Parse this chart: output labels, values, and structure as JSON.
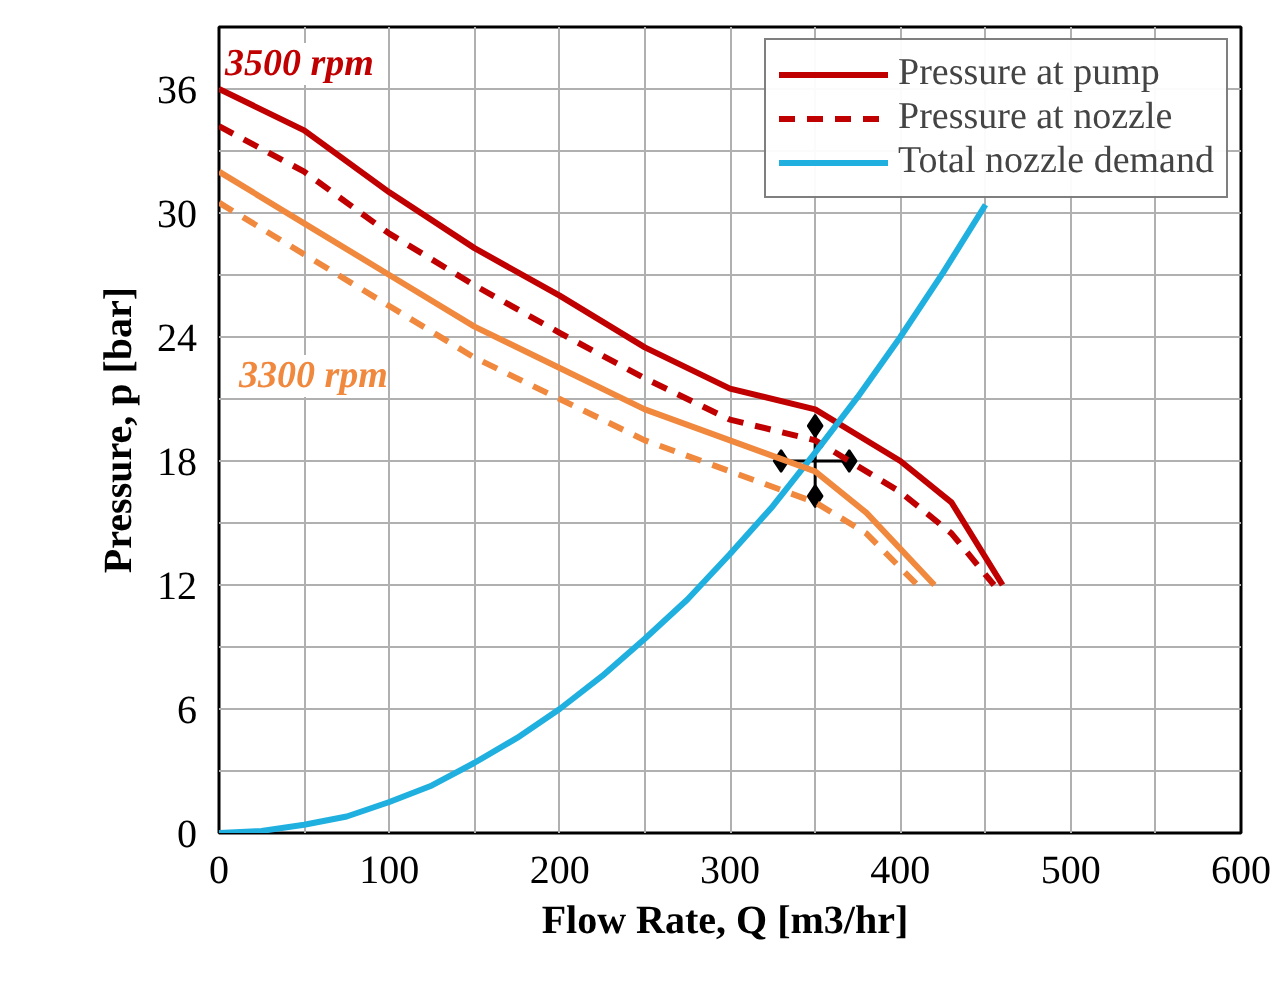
{
  "chart_data": {
    "type": "line",
    "xlabel": "Flow Rate, Q  [m3/hr]",
    "ylabel": "Pressure, p [bar]",
    "xlim": [
      0,
      600
    ],
    "ylim": [
      0,
      39
    ],
    "xticks": [
      0,
      {
        "value": 50,
        "label": null
      },
      100,
      {
        "value": 150,
        "label": null
      },
      200,
      {
        "value": 250,
        "label": null
      },
      300,
      {
        "value": 350,
        "label": null
      },
      400,
      {
        "value": 450,
        "label": null
      },
      500,
      {
        "value": 550,
        "label": null
      },
      600
    ],
    "yticks": [
      0,
      {
        "value": 3,
        "label": null
      },
      6,
      {
        "value": 9,
        "label": null
      },
      12,
      {
        "value": 15,
        "label": null
      },
      18,
      {
        "value": 21,
        "label": null
      },
      24,
      {
        "value": 27,
        "label": null
      },
      30,
      {
        "value": 33,
        "label": null
      },
      36,
      {
        "value": 39,
        "label": null
      }
    ],
    "grid": true,
    "legend": "top right",
    "marker": "none",
    "series": [
      {
        "color": "#000000",
        "line_style": "solid",
        "marker": "diamond",
        "x": [
          330,
          370
        ],
        "values": [
          18,
          18
        ]
      },
      {
        "color": "#000000",
        "line_style": "solid",
        "marker": "diamond",
        "x": [
          350,
          350
        ],
        "values": [
          16.3,
          19.7
        ]
      },
      {
        "name": "Pressure at pump",
        "color": "#c00000",
        "line_style": "solid",
        "x": [
          0,
          50,
          100,
          150,
          200,
          250,
          300,
          350,
          370,
          400,
          430,
          460
        ],
        "values": [
          36,
          34,
          31,
          28.3,
          26,
          23.5,
          21.5,
          20.5,
          19.5,
          18,
          16,
          12
        ]
      },
      {
        "name": "Pressure at nozzle",
        "color": "#c00000",
        "line_style": "dashed",
        "x": [
          0,
          50,
          100,
          150,
          200,
          250,
          300,
          350,
          400,
          430,
          455
        ],
        "values": [
          34.2,
          32,
          29,
          26.5,
          24.2,
          22,
          20,
          19,
          16.5,
          14.5,
          12
        ]
      },
      {
        "name": "Total nozzle demand",
        "color": "#1fb0e0",
        "line_style": "solid",
        "x": [
          0,
          25,
          50,
          75,
          100,
          125,
          150,
          175,
          200,
          225,
          250,
          275,
          300,
          325,
          350,
          375,
          400,
          425,
          450
        ],
        "values": [
          0,
          0.1,
          0.4,
          0.8,
          1.5,
          2.3,
          3.4,
          4.6,
          6,
          7.6,
          9.4,
          11.3,
          13.5,
          15.8,
          18.4,
          21.1,
          24,
          27.1,
          30.4
        ]
      },
      {
        "color": "#f0883e",
        "line_style": "solid",
        "x": [
          0,
          50,
          100,
          150,
          200,
          250,
          300,
          350,
          380,
          420
        ],
        "values": [
          32,
          29.5,
          27,
          24.5,
          22.5,
          20.5,
          19,
          17.5,
          15.5,
          12
        ]
      },
      {
        "color": "#f0883e",
        "line_style": "dashed",
        "x": [
          0,
          50,
          100,
          150,
          200,
          250,
          300,
          350,
          380,
          410
        ],
        "values": [
          30.5,
          28,
          25.5,
          23,
          21,
          19,
          17.5,
          16,
          14.5,
          12
        ]
      }
    ],
    "annotations": [
      "3500 rpm",
      "3300 rpm"
    ]
  }
}
